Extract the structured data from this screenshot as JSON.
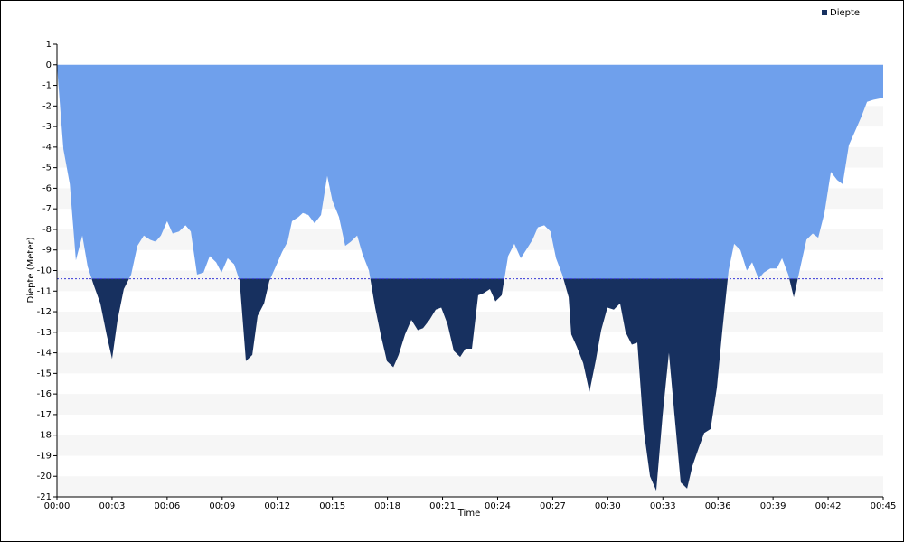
{
  "chart_data": {
    "type": "area",
    "x_label": "Time",
    "y_label": "Diepte (Meter)",
    "x": [
      0,
      0.1,
      0.35,
      0.7,
      1.03,
      1.38,
      1.67,
      2.0,
      2.36,
      2.7,
      3.0,
      3.3,
      3.64,
      4.04,
      4.38,
      4.73,
      5.07,
      5.37,
      5.66,
      6.0,
      6.3,
      6.65,
      7.0,
      7.29,
      7.63,
      7.98,
      8.32,
      8.67,
      8.96,
      9.3,
      9.65,
      9.95,
      10.29,
      10.64,
      10.93,
      11.28,
      11.57,
      11.92,
      12.26,
      12.56,
      12.8,
      13.15,
      13.39,
      13.69,
      14.03,
      14.38,
      14.72,
      15.0,
      15.36,
      15.7,
      16.0,
      16.35,
      16.64,
      16.99,
      17.33,
      17.63,
      17.97,
      18.32,
      18.61,
      18.96,
      19.3,
      19.65,
      19.94,
      20.29,
      20.63,
      20.93,
      21.27,
      21.61,
      21.96,
      22.25,
      22.6,
      22.94,
      23.24,
      23.58,
      23.88,
      24.22,
      24.57,
      24.91,
      25.26,
      25.55,
      25.9,
      26.19,
      26.54,
      26.88,
      27.18,
      27.52,
      27.87,
      28.01,
      28.31,
      28.66,
      29.0,
      29.34,
      29.64,
      29.98,
      30.33,
      30.67,
      30.97,
      31.31,
      31.61,
      31.95,
      32.3,
      32.64,
      32.99,
      33.33,
      33.63,
      33.97,
      34.32,
      34.61,
      34.96,
      35.25,
      35.6,
      35.94,
      36.24,
      36.58,
      36.88,
      37.22,
      37.57,
      37.86,
      38.21,
      38.5,
      38.85,
      39.2,
      39.49,
      39.83,
      40.13,
      40.47,
      40.82,
      41.16,
      41.46,
      41.8,
      42.15,
      42.49,
      42.79,
      43.13,
      43.48,
      43.82,
      44.12,
      44.46,
      45.0
    ],
    "series": [
      {
        "name": "Diepte",
        "color": "#6fa0ec",
        "values": [
          0,
          -1.2,
          -4.1,
          -5.8,
          -9.5,
          -8.3,
          -9.8,
          -10.7,
          -11.6,
          -13.1,
          -14.3,
          -12.4,
          -10.9,
          -10.2,
          -8.8,
          -8.3,
          -8.5,
          -8.6,
          -8.3,
          -7.6,
          -8.2,
          -8.1,
          -7.8,
          -8.1,
          -10.2,
          -10.1,
          -9.3,
          -9.6,
          -10.1,
          -9.4,
          -9.7,
          -10.5,
          -14.4,
          -14.1,
          -12.2,
          -11.6,
          -10.5,
          -9.8,
          -9.1,
          -8.6,
          -7.6,
          -7.4,
          -7.2,
          -7.3,
          -7.7,
          -7.3,
          -5.4,
          -6.6,
          -7.4,
          -8.8,
          -8.6,
          -8.3,
          -9.2,
          -10.0,
          -11.8,
          -13.1,
          -14.4,
          -14.7,
          -14.1,
          -13.1,
          -12.4,
          -12.9,
          -12.8,
          -12.4,
          -11.9,
          -11.8,
          -12.6,
          -13.9,
          -14.2,
          -13.8,
          -13.8,
          -11.2,
          -11.1,
          -10.9,
          -11.5,
          -11.2,
          -9.3,
          -8.7,
          -9.4,
          -9.0,
          -8.5,
          -7.9,
          -7.8,
          -8.1,
          -9.4,
          -10.2,
          -11.3,
          -13.1,
          -13.7,
          -14.5,
          -15.9,
          -14.4,
          -12.9,
          -11.8,
          -11.9,
          -11.6,
          -13.0,
          -13.6,
          -13.5,
          -17.7,
          -20.0,
          -20.7,
          -17.0,
          -14.0,
          -17.0,
          -20.3,
          -20.6,
          -19.5,
          -18.6,
          -17.9,
          -17.7,
          -15.7,
          -12.9,
          -10.0,
          -8.7,
          -9.0,
          -10.0,
          -9.6,
          -10.4,
          -10.1,
          -9.9,
          -9.9,
          -9.4,
          -10.2,
          -11.3,
          -9.9,
          -8.5,
          -8.2,
          -8.4,
          -7.2,
          -5.2,
          -5.6,
          -5.8,
          -3.9,
          -3.2,
          -2.5,
          -1.8,
          -1.7,
          -1.6
        ]
      }
    ],
    "below_color": "#17305f",
    "reference_line": -10.4,
    "reference_color": "#3b3bd6",
    "xlim": [
      0,
      45
    ],
    "xticks": [
      {
        "value": 0,
        "label": "00:00"
      },
      {
        "value": 3,
        "label": "00:03"
      },
      {
        "value": 6,
        "label": "00:06"
      },
      {
        "value": 9,
        "label": "00:09"
      },
      {
        "value": 12,
        "label": "00:12"
      },
      {
        "value": 15,
        "label": "00:15"
      },
      {
        "value": 18,
        "label": "00:18"
      },
      {
        "value": 21,
        "label": "00:21"
      },
      {
        "value": 24,
        "label": "00:24"
      },
      {
        "value": 27,
        "label": "00:27"
      },
      {
        "value": 30,
        "label": "00:30"
      },
      {
        "value": 33,
        "label": "00:33"
      },
      {
        "value": 36,
        "label": "00:36"
      },
      {
        "value": 39,
        "label": "00:39"
      },
      {
        "value": 42,
        "label": "00:42"
      },
      {
        "value": 45,
        "label": "00:45"
      }
    ],
    "ylim": [
      -21,
      1
    ],
    "yticks": [
      1,
      0,
      -1,
      -2,
      -3,
      -4,
      -5,
      -6,
      -7,
      -8,
      -9,
      -10,
      -11,
      -12,
      -13,
      -14,
      -15,
      -16,
      -17,
      -18,
      -19,
      -20,
      -21
    ],
    "grid": "bands",
    "legend": "top-right"
  }
}
